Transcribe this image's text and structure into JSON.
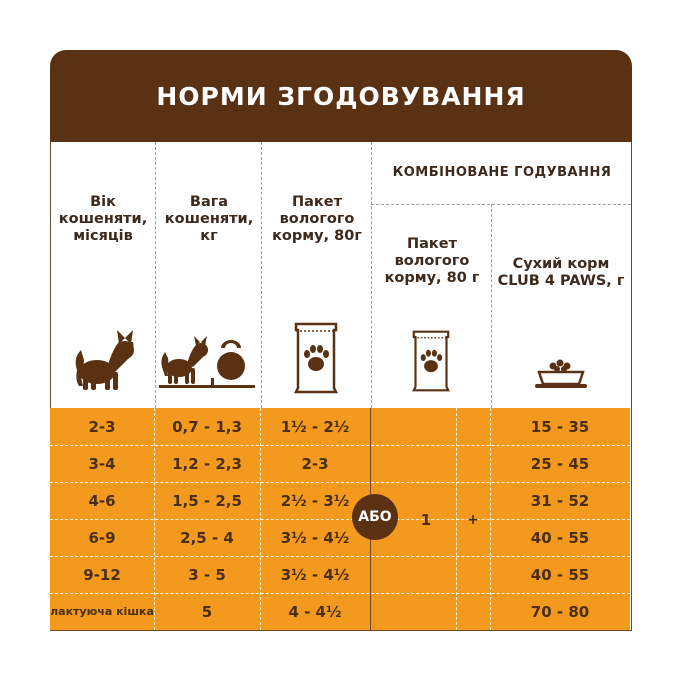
{
  "title": "НОРМИ ЗГОДОВУВАННЯ",
  "headers": {
    "age": "Вік кошеняти, місяців",
    "weight": "Вага кошеняти, кг",
    "wet": "Пакет вологого корму, 80г",
    "combined": "КОМБІНОВАНЕ ГОДУВАННЯ",
    "combined_wet": "Пакет вологого корму, 80 г",
    "combined_dry": "Сухий корм CLUB 4 PAWS, г"
  },
  "rows": [
    {
      "age": "2-3",
      "weight": "0,7 - 1,3",
      "wet": "1½ - 2½",
      "dry": "15 - 35"
    },
    {
      "age": "3-4",
      "weight": "1,2 - 2,3",
      "wet": "2-3",
      "dry": "25 - 45"
    },
    {
      "age": "4-6",
      "weight": "1,5 - 2,5",
      "wet": "2½ - 3½",
      "dry": "31 - 52"
    },
    {
      "age": "6-9",
      "weight": "2,5 - 4",
      "wet": "3½ - 4½",
      "dry": "40 - 55"
    },
    {
      "age": "9-12",
      "weight": "3 - 5",
      "wet": "3½ - 4½",
      "dry": "40 - 55"
    },
    {
      "age": "лактуюча кішка",
      "weight": "5",
      "wet": "4 - 4½",
      "dry": "70 - 80"
    }
  ],
  "combined_or": "АБО",
  "combined_wet_value": "1",
  "combined_plus": "+",
  "icons": [
    "cat-icon",
    "cat-with-kettlebell-icon",
    "wet-food-pouch-icon",
    "wet-food-pouch-icon",
    "dry-food-bowl-icon"
  ],
  "colors": {
    "brown": "#5a3213",
    "orange": "#f39a1e"
  }
}
